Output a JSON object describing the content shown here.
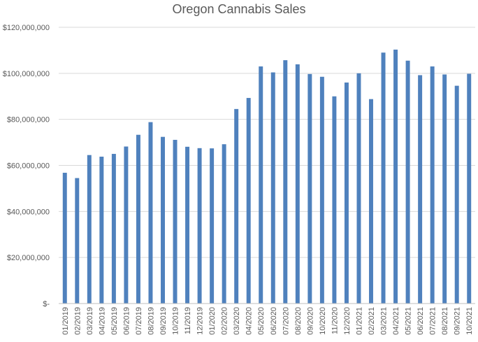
{
  "chart_data": {
    "type": "bar",
    "title": "Oregon Cannabis Sales",
    "xlabel": "",
    "ylabel": "",
    "categories": [
      "01/2019",
      "02/2019",
      "03/2019",
      "04/2019",
      "05/2019",
      "06/2019",
      "07/2019",
      "08/2019",
      "09/2019",
      "10/2019",
      "11/2019",
      "12/2019",
      "01/2020",
      "02/2020",
      "03/2020",
      "04/2020",
      "05/2020",
      "06/2020",
      "07/2020",
      "08/2020",
      "09/2020",
      "10/2020",
      "11/2020",
      "12/2020",
      "01/2021",
      "02/2021",
      "03/2021",
      "04/2021",
      "05/2021",
      "06/2021",
      "07/2021",
      "08/2021",
      "09/2021",
      "10/2021"
    ],
    "values": [
      56800000,
      54500000,
      64500000,
      63800000,
      65000000,
      68200000,
      73300000,
      78800000,
      72400000,
      71100000,
      68100000,
      67500000,
      67400000,
      69200000,
      84500000,
      89300000,
      103000000,
      100400000,
      105700000,
      103900000,
      99700000,
      98500000,
      90000000,
      96000000,
      100000000,
      88800000,
      109000000,
      110300000,
      105500000,
      99200000,
      103000000,
      99500000,
      94600000,
      99800000
    ],
    "ylim": [
      0,
      120000000
    ],
    "yticks": [
      0,
      20000000,
      40000000,
      60000000,
      80000000,
      100000000,
      120000000
    ],
    "ytick_labels": [
      "$-",
      "$20,000,000",
      "$40,000,000",
      "$60,000,000",
      "$80,000,000",
      "$100,000,000",
      "$120,000,000"
    ],
    "grid": true,
    "legend": "none",
    "colors": {
      "bar": "#4f81bd",
      "grid": "#d9d9d9",
      "axis": "#bfbfbf",
      "text": "#595959"
    }
  }
}
